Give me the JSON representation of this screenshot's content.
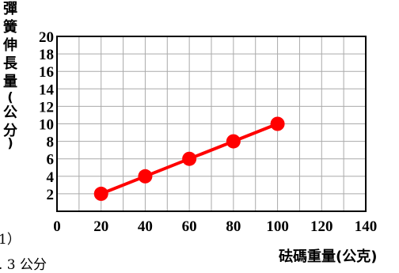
{
  "chart_data": {
    "type": "line",
    "x": [
      20,
      40,
      60,
      80,
      100
    ],
    "series": [
      {
        "values": [
          2,
          4,
          6,
          8,
          10
        ],
        "color": "#ff0000"
      }
    ],
    "xlabel": "砝碼重量(公克)",
    "ylabel": "彈簧伸長量(公分)",
    "xlim": [
      0,
      140
    ],
    "ylim": [
      0,
      20
    ],
    "xticks": [
      "0",
      "20",
      "40",
      "60",
      "80",
      "100",
      "120",
      "140"
    ],
    "yticks": [
      "2",
      "4",
      "6",
      "8",
      "10",
      "12",
      "14",
      "16",
      "18",
      "20"
    ],
    "grid": true
  },
  "fragments": {
    "line1": "1）",
    "line2": ". 3 公分"
  }
}
